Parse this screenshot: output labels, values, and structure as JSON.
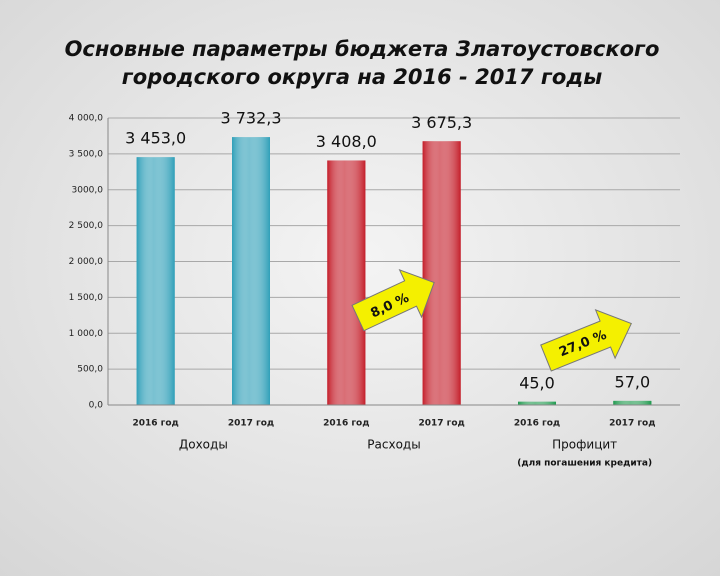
{
  "chart_data": {
    "type": "bar",
    "title": [
      "Основные параметры бюджета Златоустовского",
      "городского округа на 2016 - 2017 годы"
    ],
    "groups": [
      {
        "label": "Доходы",
        "categories": [
          "2016 год",
          "2017 год"
        ],
        "values": [
          3453.0,
          3732.3
        ],
        "value_labels": [
          "3 453,0",
          "3 732,3"
        ],
        "color": "#2f9fb8"
      },
      {
        "label": "Расходы",
        "categories": [
          "2016 год",
          "2017 год"
        ],
        "values": [
          3408.0,
          3675.3
        ],
        "value_labels": [
          "3 408,0",
          "3 675,3"
        ],
        "color": "#c41e2a"
      },
      {
        "label": "Профицит",
        "sublabel": "(для погашения кредита)",
        "categories": [
          "2016 год",
          "2017 год"
        ],
        "values": [
          45.0,
          57.0
        ],
        "value_labels": [
          "45,0",
          "57,0"
        ],
        "color": "#1f9a4e"
      }
    ],
    "annotations": [
      "8,0 %",
      "27,0 %"
    ],
    "ylim": [
      0,
      4000
    ],
    "yticks": [
      {
        "value": 0,
        "label": "0,0"
      },
      {
        "value": 500,
        "label": "500,0"
      },
      {
        "value": 1000,
        "label": "1 000,0"
      },
      {
        "value": 1500,
        "label": "1 500,0"
      },
      {
        "value": 2000,
        "label": "2 000,0"
      },
      {
        "value": 2500,
        "label": "2 500,0"
      },
      {
        "value": 3000,
        "label": "3000,0"
      },
      {
        "value": 3500,
        "label": "3 500,0"
      },
      {
        "value": 4000,
        "label": "4 000,0"
      }
    ],
    "grid": true
  }
}
